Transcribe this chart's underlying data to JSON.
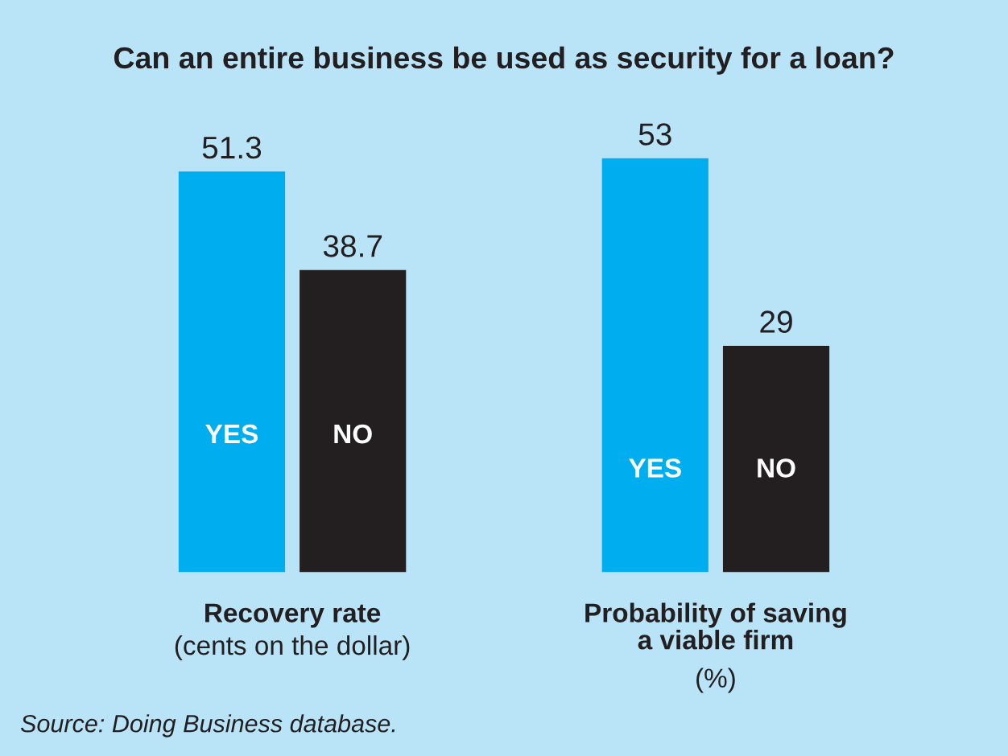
{
  "chart_data": [
    {
      "type": "bar",
      "title": "Can an entire business be used as security for a loan?",
      "categories": [
        "YES",
        "NO"
      ],
      "values": [
        51.3,
        38.7
      ],
      "colors": [
        "#00aeef",
        "#231f20"
      ],
      "data_labels": true,
      "xlabel": "Recovery rate",
      "subtitle": "(cents on the dollar)",
      "annotations": [
        "Source: Doing Business database."
      ]
    },
    {
      "type": "bar",
      "categories": [
        "YES",
        "NO"
      ],
      "values": [
        53,
        29
      ],
      "colors": [
        "#00aeef",
        "#231f20"
      ],
      "data_labels": true,
      "xlabel": "Probability of saving\na viable firm",
      "subtitle": "(%)"
    }
  ]
}
